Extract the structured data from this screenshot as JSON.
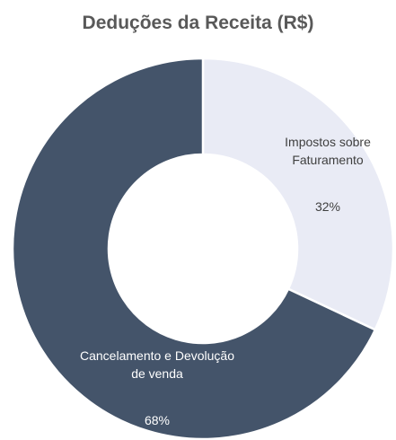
{
  "chart_data": {
    "type": "donut",
    "title": "Deduções da Receita (R$)",
    "categories": [
      "Impostos sobre Faturamento",
      "Cancelamento e Devolução de venda"
    ],
    "values": [
      32,
      68
    ],
    "value_labels": [
      "32%",
      "68%"
    ],
    "colors": [
      "#e9ebf5",
      "#44546a"
    ]
  }
}
